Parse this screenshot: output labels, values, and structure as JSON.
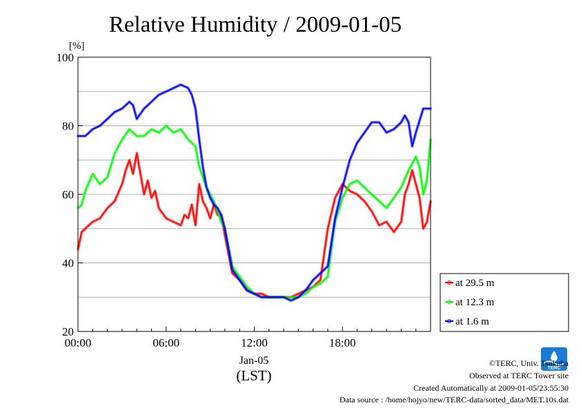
{
  "chart_data": {
    "type": "line",
    "title": "Relative Humidity / 2009-01-05",
    "y_unit": "[%]",
    "ylim": [
      20,
      100
    ],
    "yticks": [
      20,
      40,
      60,
      80,
      100
    ],
    "xlim": [
      0,
      24
    ],
    "xticks": [
      {
        "value": 0,
        "label": "00:00"
      },
      {
        "value": 6,
        "label": "06:00"
      },
      {
        "value": 12,
        "label": "12:00"
      },
      {
        "value": 18,
        "label": "18:00"
      }
    ],
    "x_date_label": "Jan-05",
    "xlabel": "(LST)",
    "grid": true,
    "legend_position": "bottom-right-outside",
    "series": [
      {
        "name": "at 29.5 m",
        "color": "#ff0000",
        "x": [
          0,
          0.25,
          0.5,
          1,
          1.5,
          2,
          2.5,
          3,
          3.25,
          3.5,
          3.75,
          4,
          4.25,
          4.5,
          4.75,
          5,
          5.25,
          5.5,
          6,
          6.5,
          7,
          7.25,
          7.5,
          7.75,
          8,
          8.25,
          8.5,
          8.75,
          9,
          9.25,
          9.5,
          9.75,
          10,
          10.5,
          11,
          11.5,
          12,
          12.5,
          13,
          13.5,
          14,
          14.5,
          15,
          15.5,
          16,
          16.5,
          17,
          17.5,
          18,
          18.5,
          19,
          19.5,
          20,
          20.5,
          21,
          21.5,
          22,
          22.25,
          22.5,
          22.75,
          23,
          23.25,
          23.5,
          23.75,
          24
        ],
        "y": [
          44,
          49,
          50,
          52,
          53,
          56,
          58,
          63,
          67,
          70,
          66,
          72,
          66,
          60,
          64,
          59,
          61,
          56,
          53,
          52,
          51,
          54,
          53,
          57,
          51,
          63,
          58,
          56,
          53,
          57,
          54,
          54,
          48,
          37,
          35,
          32,
          31,
          31,
          30,
          30,
          30,
          30,
          31,
          32,
          33,
          35,
          50,
          59,
          63,
          61,
          60,
          58,
          55,
          51,
          52,
          49,
          52,
          60,
          63,
          67,
          63,
          59,
          50,
          52,
          58
        ]
      },
      {
        "name": "at 12.3 m",
        "color": "#00ff00",
        "x": [
          0,
          0.25,
          0.5,
          1,
          1.5,
          2,
          2.5,
          3,
          3.5,
          4,
          4.5,
          5,
          5.5,
          6,
          6.5,
          7,
          7.5,
          8,
          8.25,
          8.5,
          8.75,
          9,
          9.25,
          9.5,
          9.75,
          10,
          10.5,
          11,
          11.5,
          12,
          12.5,
          13,
          13.5,
          14,
          14.5,
          15,
          15.5,
          16,
          16.5,
          17,
          17.5,
          18,
          18.5,
          19,
          19.5,
          20,
          20.5,
          21,
          21.5,
          22,
          22.5,
          23,
          23.25,
          23.5,
          23.75,
          24
        ],
        "y": [
          56,
          57,
          61,
          66,
          63,
          65,
          72,
          76,
          79,
          77,
          77,
          79,
          78,
          80,
          78,
          79,
          76,
          74,
          68,
          65,
          62,
          60,
          58,
          55,
          52,
          50,
          39,
          36,
          33,
          31,
          30,
          30,
          30,
          30,
          30,
          30,
          31,
          33,
          34,
          36,
          52,
          59,
          63,
          64,
          62,
          60,
          58,
          56,
          59,
          62,
          67,
          71,
          68,
          60,
          64,
          76
        ]
      },
      {
        "name": "at 1.6 m",
        "color": "#0000ff",
        "x": [
          0,
          0.5,
          1,
          1.5,
          2,
          2.5,
          3,
          3.5,
          3.75,
          4,
          4.5,
          5,
          5.5,
          6,
          6.5,
          7,
          7.5,
          7.75,
          8,
          8.25,
          8.5,
          8.75,
          9,
          9.25,
          9.5,
          9.75,
          10,
          10.5,
          11,
          11.5,
          12,
          12.5,
          13,
          13.5,
          14,
          14.5,
          15,
          15.5,
          16,
          16.5,
          17,
          17.5,
          18,
          18.5,
          19,
          19.5,
          20,
          20.5,
          21,
          21.5,
          22,
          22.25,
          22.5,
          22.75,
          23,
          23.5,
          24
        ],
        "y": [
          77,
          77,
          79,
          80,
          82,
          84,
          85,
          87,
          86,
          82,
          85,
          87,
          89,
          90,
          91,
          92,
          91,
          89,
          85,
          76,
          68,
          62,
          59,
          57,
          56,
          54,
          50,
          38,
          35,
          32,
          31,
          30,
          30,
          30,
          30,
          29,
          30,
          32,
          35,
          37,
          39,
          53,
          62,
          70,
          75,
          78,
          81,
          81,
          78,
          79,
          81,
          83,
          81,
          74,
          78,
          85,
          85
        ]
      }
    ]
  },
  "footer": {
    "copyright": "©TERC, Univ. Tsukuba",
    "observed": "Observed at TERC Tower site",
    "created": "Created Automatically at 2009-01-05/23:55:30",
    "source": "Data source : /home/hojyo/new/TERC-data/sorted_data/MET.10s.dat"
  },
  "logo": {
    "text": "TERC",
    "color": "#1a7ad4"
  }
}
